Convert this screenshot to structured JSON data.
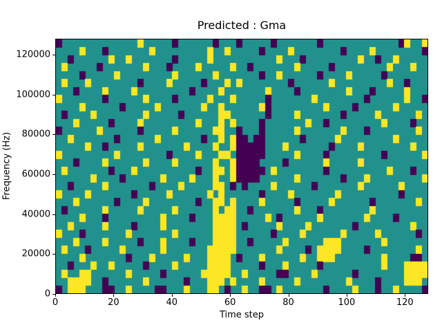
{
  "chart_data": {
    "type": "heatmap",
    "title": "Predicted : Gma",
    "xlabel": "Time step",
    "ylabel": "Frequency (Hz)",
    "xlim": [
      0,
      128
    ],
    "ylim": [
      0,
      128000
    ],
    "x_ticks": [
      0,
      20,
      40,
      60,
      80,
      100,
      120
    ],
    "x_tick_labels": [
      "0",
      "20",
      "40",
      "60",
      "80",
      "100",
      "120"
    ],
    "y_ticks": [
      0,
      20000,
      40000,
      60000,
      80000,
      100000,
      120000
    ],
    "y_tick_labels": [
      "0",
      "20000",
      "40000",
      "60000",
      "80000",
      "100000",
      "120000"
    ],
    "colormap": "viridis",
    "legend": "none",
    "grid_lines": false,
    "value_colors": {
      "low": "#440154",
      "mid": "#21918c",
      "high": "#fde725"
    },
    "grid": {
      "cols": 64,
      "rows": 32,
      "col_span_time_steps": 2,
      "row_span_hz": 4000,
      "encoding": {
        ".": "mid",
        "y": "high",
        "d": "low"
      },
      "rows_top_to_bottom": [
        "d.............y.....d......d...d.....d.......d.............dy..y",
        "....y...d.......y.........y..y.....d....y........d....y........d",
        "..d......y..y.......d.....y...........y...d.........y..d..y.....",
        ".y.....d.......y...d....y.....y..d.......y.....d.........y...y..",
        "....d.....y.........y......y.......d..y......d....y.....d.......",
        ".y...y........d....y.....d...y.y........d......y.........y..d...",
        "...d....y....y.........d....y.......y....d........y...d.....y...",
        "y.......d......y....d.....y...y.....d.......y........d......y..d",
        "....y......d.....y.......y..y......yd.........y....d......y.....",
        ".d....y........y.....d......yy......d....y.......d.....y......y.",
        "...y.....d....y.........y...y.y....d.......y..d.........y....d..",
        "d......y......d.....y......yy..d...d.....y.......y...d........y.",
        "..y.......d......y.......d..y.ydd.dd......d.....y.........y.....",
        ".....y..d.....y.......y....y..yddddd...y.......d....y........y..",
        "y.........y........d....y...yy.ddddd.....y....d.........d......y",
        "...d....y......y....y......y..ydddd....d......y.....y...........",
        ".y.......d...y..........d..yy.yddddd.y........d..........y...d..",
        "......y....d......y....y...y..ydddd......y.......d...y.........y",
        "..d.....y.......d....y.....yy.d.d....y......d.......y......y....",
        "y....y.......d.....y......y.y......d....y.......y..........d....",
        "...y......d....y........d..yy.y....y.....d.....y......d.......y.",
        ".d......y.....y.....y......y.yy..d.......y...d........y.........",
        "....y...d.........y....d...yyyy.....y.d......y.......y....d.....",
        "..y.....y....d....y........yyyy.d.....y....y.......d.........y..",
        "y...d.......y.......y......yyyy......d....y......y.....y......d.",
        "...y....y.....d...y....d...yyyy..d.....y......yyy.......y.......",
        ".y...d.....y......y.......yyyyy.......y....d.yyyy....d........y.",
        "....y.......d...y.....y...yyyy.d...y......y..yyy........y....dd.",
        "..d...y..y.....d....y.....yyyy.....d...y.....d..........y...yyyy",
        ".y..yy......y.....d......yyyyy..y.....dd....y......d........yyyy",
        "..yyyy..d......y......d...yyy.y....y.....y........y....d....yyy.",
        "d.yyy...dd..y....dd...y...yy.d..y..dd.y.......d....y...d..y....d"
      ]
    }
  }
}
